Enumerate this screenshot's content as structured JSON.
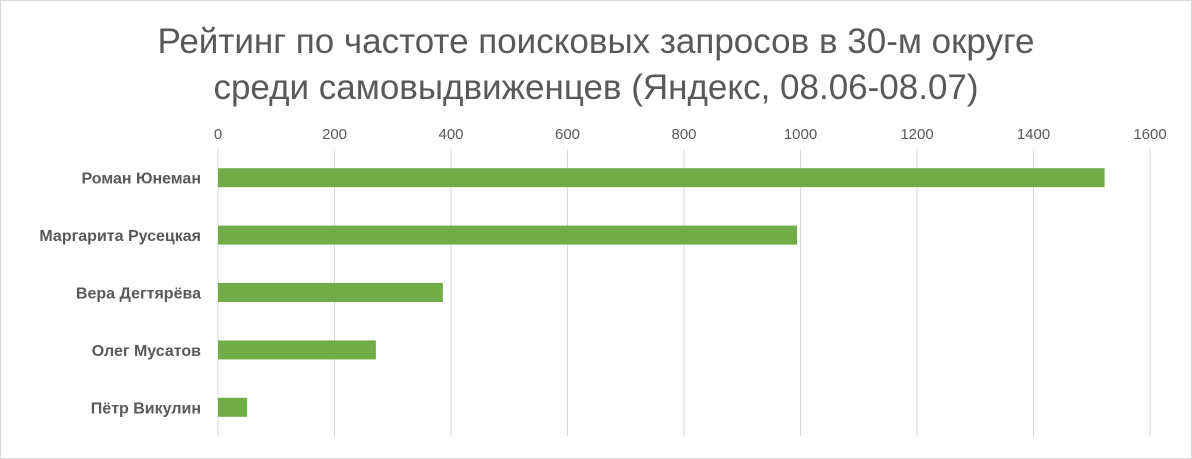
{
  "chart_data": {
    "type": "bar",
    "orientation": "horizontal",
    "title_line1": "Рейтинг по частоте поисковых запросов в 30-м округе",
    "title_line2": "среди самовыдвиженцев (Яндекс, 08.06-08.07)",
    "categories": [
      "Роман Юнеман",
      "Маргарита Русецкая",
      "Вера Дегтярёва",
      "Олег Мусатов",
      "Пётр Викулин"
    ],
    "values": [
      1522,
      994,
      386,
      271,
      50
    ],
    "xlim": [
      0,
      1600
    ],
    "x_ticks": [
      "0",
      "200",
      "400",
      "600",
      "800",
      "1000",
      "1200",
      "1400",
      "1600"
    ],
    "axis_position": "top",
    "grid": true,
    "legend": "none",
    "bar_color": "#70ad47",
    "grid_color": "#d9d9d9"
  }
}
